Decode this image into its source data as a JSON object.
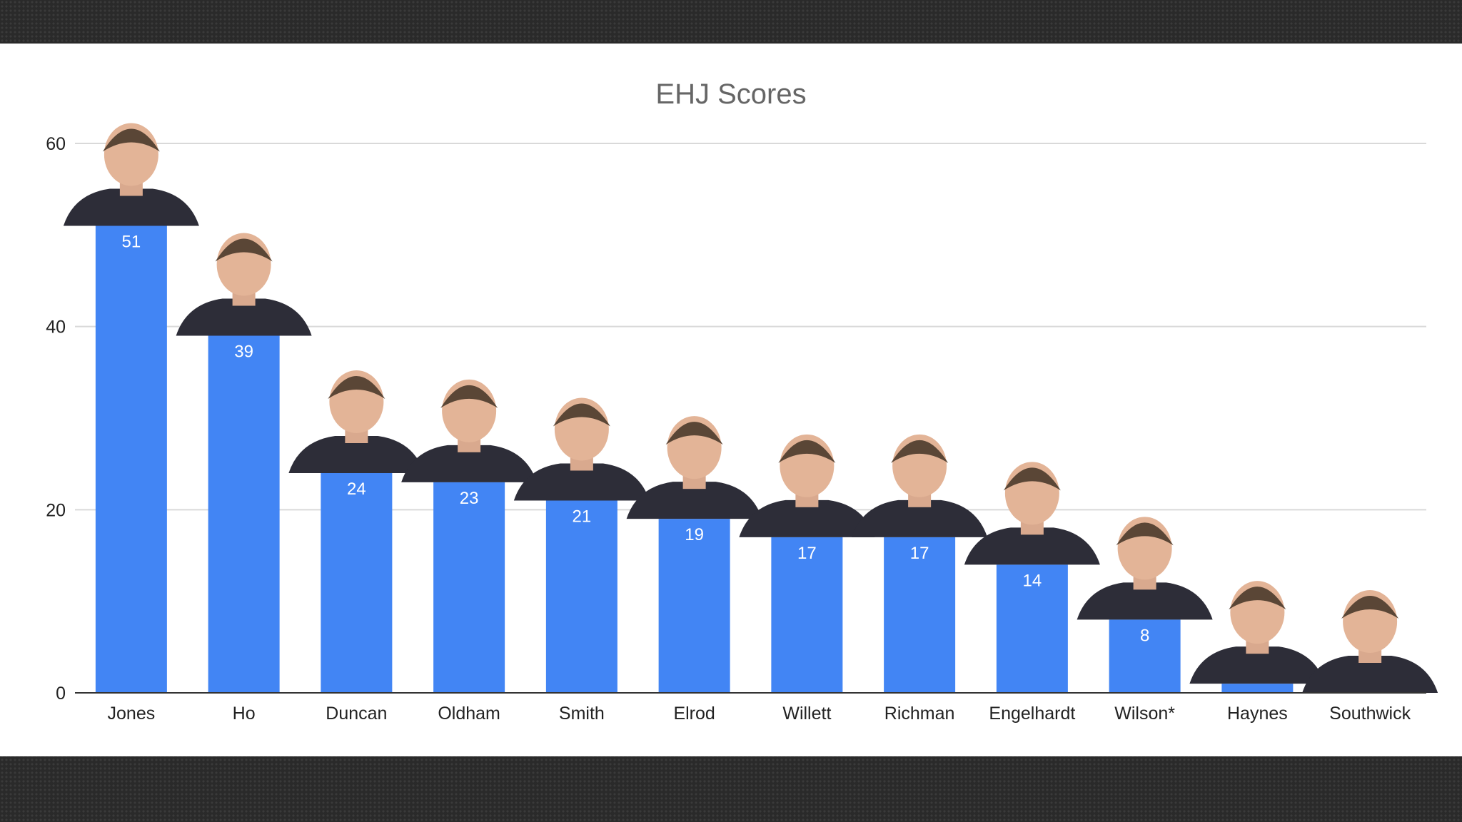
{
  "chart_data": {
    "type": "bar",
    "title": "EHJ Scores",
    "xlabel": "",
    "ylabel": "",
    "ylim": [
      0,
      60
    ],
    "yticks": [
      0,
      20,
      40,
      60
    ],
    "grid": true,
    "legend": "none",
    "bar_color": "#4285f4",
    "categories": [
      "Jones",
      "Ho",
      "Duncan",
      "Oldham",
      "Smith",
      "Elrod",
      "Willett",
      "Richman",
      "Engelhardt",
      "Wilson*",
      "Haynes",
      "Southwick"
    ],
    "values": [
      51,
      39,
      24,
      23,
      21,
      19,
      17,
      17,
      14,
      8,
      1,
      0
    ],
    "data_labels": [
      "51",
      "39",
      "24",
      "23",
      "21",
      "19",
      "17",
      "17",
      "14",
      "8",
      "",
      ""
    ]
  },
  "colors": {
    "bar": "#4285f4",
    "title": "#666666",
    "grid": "#d9d9d9",
    "axis": "#333333",
    "label": "#222222"
  },
  "portraits": [
    "Jones",
    "Ho",
    "Duncan",
    "Oldham",
    "Smith",
    "Elrod",
    "Willett",
    "Richman",
    "Engelhardt",
    "Wilson*",
    "Haynes",
    "Southwick"
  ]
}
